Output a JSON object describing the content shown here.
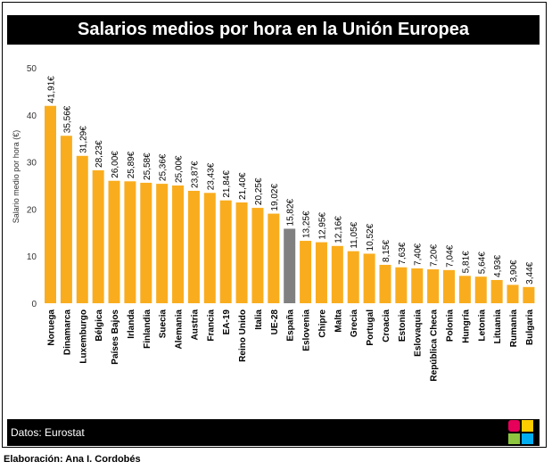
{
  "header": {
    "title": "Salarios medios por hora en la Unión Europea"
  },
  "footer": {
    "source": "Datos: Eurostat",
    "credit": "Elaboración: Ana I. Cordobés"
  },
  "colors": {
    "bar": "#f9ad1e",
    "highlight": "#808080",
    "title_bg": "#000000",
    "title_text": "#ffffff"
  },
  "logo": {
    "icon": "colored-squares-logo-icon",
    "colors": [
      "#e6005a",
      "#ffcc00",
      "#8dc63f",
      "#00aeef"
    ]
  },
  "chart_data": {
    "type": "bar",
    "title": "Salarios medios por hora en la Unión Europea",
    "xlabel": "",
    "ylabel": "Salario medio por hora (€)",
    "ylim": [
      0,
      50
    ],
    "yticks": [
      0,
      10,
      20,
      30,
      40,
      50
    ],
    "grid": false,
    "legend": "none",
    "categories": [
      "Noruega",
      "Dinamarca",
      "Luxemburgo",
      "Bélgica",
      "Países Bajos",
      "Irlanda",
      "Finlandia",
      "Suecia",
      "Alemania",
      "Austria",
      "Francia",
      "EA-19",
      "Reino Unido",
      "Italia",
      "UE-28",
      "España",
      "Eslovenia",
      "Chipre",
      "Malta",
      "Grecia",
      "Portugal",
      "Croacia",
      "Estonia",
      "Eslovaquia",
      "República Checa",
      "Polonia",
      "Hungría",
      "Letonia",
      "Lituania",
      "Rumania",
      "Bulgaria"
    ],
    "values": [
      41.91,
      35.56,
      31.29,
      28.23,
      26.0,
      25.89,
      25.58,
      25.36,
      25.0,
      23.87,
      23.43,
      21.84,
      21.4,
      20.25,
      19.02,
      15.82,
      13.25,
      12.95,
      12.16,
      11.05,
      10.52,
      8.15,
      7.63,
      7.4,
      7.2,
      7.04,
      5.81,
      5.64,
      4.93,
      3.9,
      3.44
    ],
    "labels": [
      "41,91€",
      "35,56€",
      "31,29€",
      "28,23€",
      "26,00€",
      "25,89€",
      "25,58€",
      "25,36€",
      "25,00€",
      "23,87€",
      "23,43€",
      "21,84€",
      "21,40€",
      "20,25€",
      "19,02€",
      "15,82€",
      "13,25€",
      "12,95€",
      "12,16€",
      "11,05€",
      "10,52€",
      "8,15€",
      "7,63€",
      "7,40€",
      "7,20€",
      "7,04€",
      "5,81€",
      "5,64€",
      "4,93€",
      "3,90€",
      "3,44€"
    ],
    "highlight": "España"
  }
}
